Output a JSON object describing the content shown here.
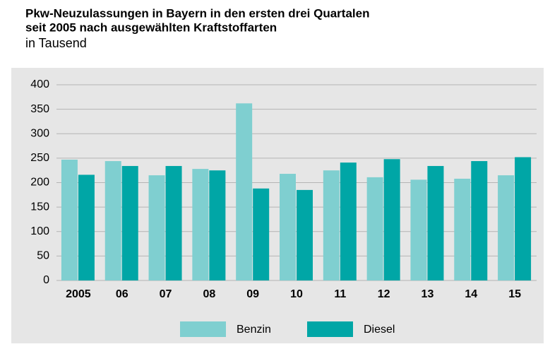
{
  "chart_data": {
    "type": "bar",
    "title": [
      "Pkw-Neuzulassungen in Bayern in den ersten drei Quartalen",
      "seit 2005 nach ausgewählten Kraftstoffarten"
    ],
    "subtitle": "in Tausend",
    "categories": [
      "2005",
      "06",
      "07",
      "08",
      "09",
      "10",
      "11",
      "12",
      "13",
      "14",
      "15"
    ],
    "series": [
      {
        "name": "Benzin",
        "color": "#7fcfd0",
        "values": [
          247,
          244,
          215,
          228,
          362,
          218,
          225,
          211,
          206,
          208,
          215
        ]
      },
      {
        "name": "Diesel",
        "color": "#00a6a6",
        "values": [
          216,
          234,
          234,
          225,
          188,
          185,
          241,
          248,
          234,
          244,
          252
        ]
      }
    ],
    "ylim": [
      0,
      400
    ],
    "yticks": [
      0,
      50,
      100,
      150,
      200,
      250,
      300,
      350,
      400
    ],
    "grid": true,
    "legend": "bottom"
  }
}
